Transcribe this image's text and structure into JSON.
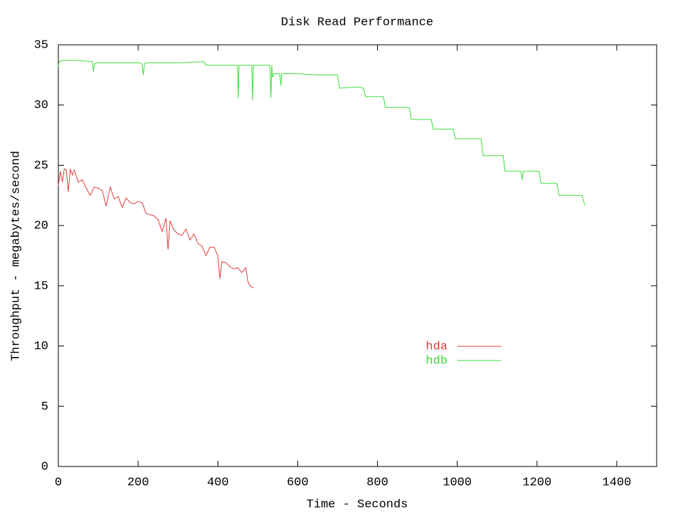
{
  "chart_data": {
    "type": "line",
    "title": "Disk Read Performance",
    "x_label": "Time - Seconds",
    "y_label": "Throughput - megabytes/second",
    "xlim": [
      0,
      1500
    ],
    "xticks": [
      0,
      200,
      400,
      600,
      800,
      1000,
      1200,
      1400
    ],
    "ylim": [
      0,
      35
    ],
    "yticks": [
      0,
      5,
      10,
      15,
      20,
      25,
      30,
      35
    ],
    "grid": false,
    "legend": "center-right",
    "series": [
      {
        "name": "hda",
        "color": "#e03c3c",
        "x": [
          0,
          5,
          10,
          15,
          20,
          25,
          30,
          35,
          40,
          50,
          60,
          70,
          80,
          90,
          100,
          110,
          120,
          130,
          140,
          150,
          160,
          170,
          180,
          190,
          200,
          210,
          220,
          230,
          240,
          250,
          260,
          270,
          275,
          280,
          290,
          300,
          310,
          320,
          330,
          340,
          350,
          360,
          370,
          380,
          390,
          400,
          405,
          410,
          420,
          430,
          440,
          450,
          460,
          470,
          475,
          480,
          485,
          490
        ],
        "values": [
          23.3,
          24.5,
          23.6,
          24.7,
          24.6,
          22.8,
          24.7,
          24.2,
          24.6,
          23.6,
          23.8,
          23.1,
          22.5,
          23.2,
          23.1,
          22.9,
          21.6,
          23.2,
          22.2,
          22.4,
          21.5,
          22.3,
          21.9,
          21.8,
          22.0,
          21.9,
          21.0,
          20.9,
          20.8,
          20.5,
          19.5,
          20.6,
          18.0,
          20.4,
          19.6,
          19.3,
          19.2,
          19.7,
          18.8,
          19.3,
          18.5,
          18.3,
          17.5,
          18.2,
          18.2,
          17.5,
          15.6,
          17.0,
          16.9,
          16.6,
          16.4,
          16.5,
          16.1,
          16.5,
          15.4,
          15.0,
          14.9,
          14.8
        ]
      },
      {
        "name": "hdb",
        "color": "#3cdc3c",
        "x": [
          0,
          2,
          10,
          50,
          85,
          88,
          90,
          95,
          150,
          205,
          210,
          213,
          216,
          220,
          300,
          365,
          370,
          420,
          449,
          451,
          453,
          455,
          480,
          485,
          487,
          489,
          495,
          530,
          533,
          535,
          537,
          540,
          555,
          558,
          560,
          600,
          650,
          700,
          705,
          750,
          765,
          770,
          815,
          820,
          880,
          885,
          935,
          940,
          990,
          995,
          1060,
          1065,
          1115,
          1120,
          1160,
          1163,
          1166,
          1205,
          1210,
          1250,
          1255,
          1313,
          1315,
          1320
        ],
        "values": [
          33.2,
          33.6,
          33.7,
          33.7,
          33.6,
          32.8,
          33.4,
          33.5,
          33.5,
          33.5,
          33.4,
          32.5,
          33.4,
          33.5,
          33.5,
          33.6,
          33.3,
          33.3,
          33.3,
          30.6,
          33.3,
          33.3,
          33.3,
          33.3,
          30.4,
          33.3,
          33.3,
          33.3,
          30.6,
          33.3,
          32.3,
          32.6,
          32.6,
          31.6,
          32.6,
          32.6,
          32.5,
          32.5,
          31.4,
          31.5,
          31.4,
          30.7,
          30.7,
          29.8,
          29.8,
          28.8,
          28.8,
          28.0,
          28.0,
          27.2,
          27.2,
          25.8,
          25.8,
          24.5,
          24.5,
          23.8,
          24.5,
          24.5,
          23.5,
          23.5,
          22.5,
          22.5,
          22.2,
          21.7
        ]
      }
    ]
  }
}
